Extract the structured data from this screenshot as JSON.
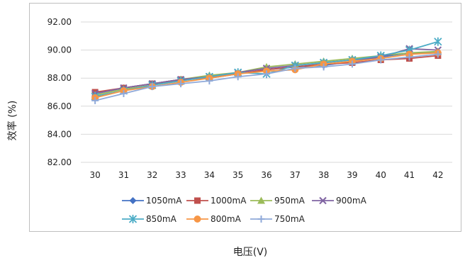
{
  "chart_data": {
    "type": "line",
    "title": "",
    "xlabel": "电压(V)",
    "ylabel": "效率 (%)",
    "x": [
      30,
      31,
      32,
      33,
      34,
      35,
      36,
      37,
      38,
      39,
      40,
      41,
      42
    ],
    "x_tick_labels": [
      "30",
      "31",
      "32",
      "33",
      "34",
      "35",
      "36",
      "37",
      "38",
      "39",
      "40",
      "41",
      "42"
    ],
    "y_tick_labels": [
      "82.00",
      "84.00",
      "86.00",
      "88.00",
      "90.00",
      "92.00"
    ],
    "ylim": [
      82,
      92
    ],
    "y_ticks": [
      82,
      84,
      86,
      88,
      90,
      92
    ],
    "grid": "horizontal",
    "legend_position": "bottom",
    "series": [
      {
        "name": "1050mA",
        "color": "#4472C4",
        "marker": "diamond",
        "values": [
          86.9,
          87.3,
          87.6,
          87.9,
          88.1,
          88.3,
          88.6,
          88.8,
          88.9,
          89.2,
          89.5,
          89.8,
          89.8
        ]
      },
      {
        "name": "1000mA",
        "color": "#C0504D",
        "marker": "square",
        "values": [
          87.0,
          87.3,
          87.6,
          87.9,
          88.0,
          88.3,
          88.6,
          88.8,
          89.0,
          89.1,
          89.3,
          89.4,
          89.6
        ]
      },
      {
        "name": "950mA",
        "color": "#9BBB59",
        "marker": "triangle",
        "values": [
          86.8,
          87.2,
          87.5,
          87.9,
          88.2,
          88.4,
          88.8,
          89.0,
          89.2,
          89.4,
          89.6,
          89.8,
          89.9
        ]
      },
      {
        "name": "900mA",
        "color": "#8064A2",
        "marker": "x",
        "values": [
          86.9,
          87.3,
          87.6,
          87.9,
          88.1,
          88.4,
          88.7,
          88.9,
          89.1,
          89.3,
          89.5,
          90.1,
          90.0
        ]
      },
      {
        "name": "850mA",
        "color": "#4BACC6",
        "marker": "star",
        "values": [
          86.7,
          87.1,
          87.5,
          87.8,
          88.1,
          88.4,
          88.3,
          88.9,
          89.1,
          89.3,
          89.6,
          90.0,
          90.6
        ]
      },
      {
        "name": "800mA",
        "color": "#F79646",
        "marker": "circle",
        "values": [
          86.6,
          87.1,
          87.4,
          87.7,
          88.0,
          88.3,
          88.5,
          88.6,
          89.0,
          89.2,
          89.4,
          89.7,
          89.8
        ]
      },
      {
        "name": "750mA",
        "color": "#8FA9D9",
        "marker": "plus",
        "values": [
          86.4,
          86.9,
          87.4,
          87.6,
          87.8,
          88.1,
          88.3,
          88.7,
          88.8,
          89.0,
          89.3,
          89.5,
          89.7
        ]
      }
    ]
  }
}
